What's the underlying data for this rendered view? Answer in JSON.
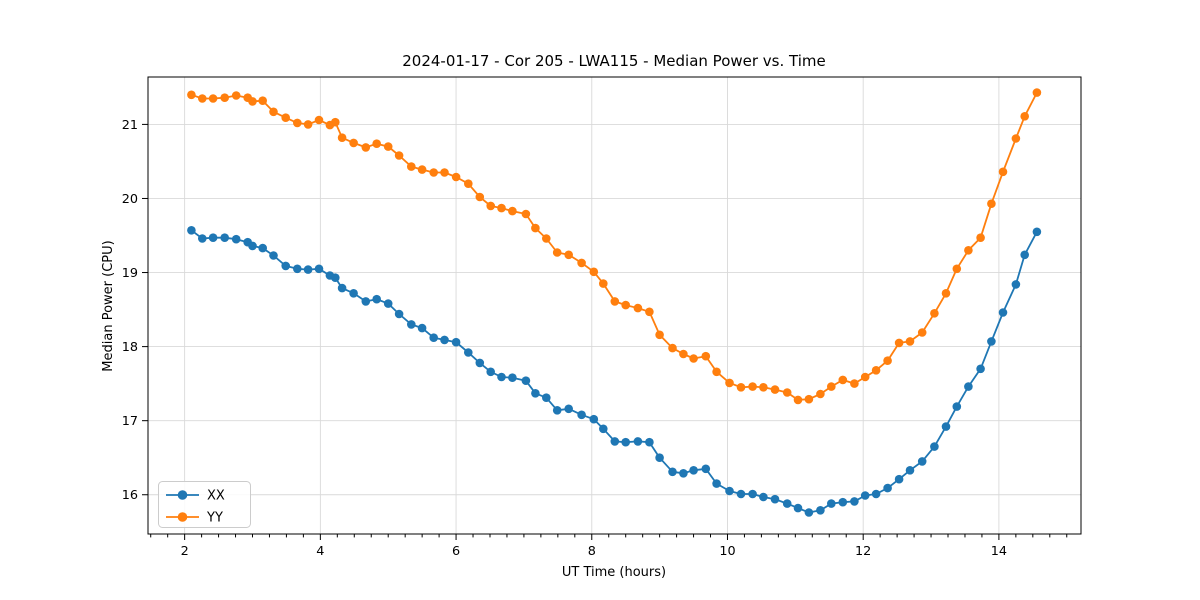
{
  "title": "2024-01-17 - Cor 205 - LWA115 - Median Power vs. Time",
  "chart_data": {
    "type": "line",
    "title": "2024-01-17 - Cor 205 - LWA115 - Median Power vs. Time",
    "xlabel": "UT Time (hours)",
    "ylabel": "Median Power (CPU)",
    "xlim": [
      1.46,
      15.21
    ],
    "ylim": [
      15.47,
      21.64
    ],
    "xticks": [
      2,
      4,
      6,
      8,
      10,
      12,
      14
    ],
    "yticks": [
      16,
      17,
      18,
      19,
      20,
      21
    ],
    "x_minor_step": 0.25,
    "grid": true,
    "legend_position": "lower left",
    "x": [
      2.1,
      2.26,
      2.42,
      2.59,
      2.76,
      2.93,
      3.0,
      3.15,
      3.31,
      3.49,
      3.66,
      3.82,
      3.98,
      4.14,
      4.22,
      4.32,
      4.49,
      4.67,
      4.83,
      5.0,
      5.16,
      5.34,
      5.5,
      5.67,
      5.83,
      6.0,
      6.18,
      6.35,
      6.51,
      6.67,
      6.83,
      7.03,
      7.17,
      7.33,
      7.49,
      7.66,
      7.85,
      8.03,
      8.17,
      8.34,
      8.5,
      8.68,
      8.85,
      9.0,
      9.19,
      9.35,
      9.5,
      9.68,
      9.84,
      10.03,
      10.2,
      10.37,
      10.53,
      10.7,
      10.88,
      11.04,
      11.2,
      11.37,
      11.53,
      11.7,
      11.87,
      12.03,
      12.19,
      12.36,
      12.53,
      12.69,
      12.87,
      13.05,
      13.22,
      13.38,
      13.55,
      13.73,
      13.89,
      14.06,
      14.25,
      14.38,
      14.56
    ],
    "series": [
      {
        "name": "XX",
        "color": "#1f77b4",
        "values": [
          19.57,
          19.46,
          19.47,
          19.47,
          19.45,
          19.41,
          19.36,
          19.33,
          19.23,
          19.09,
          19.05,
          19.04,
          19.05,
          18.96,
          18.93,
          18.79,
          18.72,
          18.61,
          18.64,
          18.58,
          18.44,
          18.3,
          18.25,
          18.12,
          18.09,
          18.06,
          17.92,
          17.78,
          17.66,
          17.59,
          17.58,
          17.54,
          17.37,
          17.31,
          17.14,
          17.16,
          17.08,
          17.02,
          16.89,
          16.72,
          16.71,
          16.72,
          16.71,
          16.5,
          16.31,
          16.29,
          16.33,
          16.35,
          16.15,
          16.05,
          16.01,
          16.01,
          15.97,
          15.94,
          15.88,
          15.82,
          15.76,
          15.79,
          15.88,
          15.9,
          15.91,
          15.99,
          16.01,
          16.09,
          16.21,
          16.33,
          16.45,
          16.65,
          16.92,
          17.19,
          17.46,
          17.7,
          18.07,
          18.46,
          18.84,
          19.24,
          19.55
        ]
      },
      {
        "name": "YY",
        "color": "#ff7f0e",
        "values": [
          21.4,
          21.35,
          21.35,
          21.36,
          21.39,
          21.36,
          21.31,
          21.32,
          21.17,
          21.09,
          21.02,
          21.0,
          21.06,
          20.99,
          21.03,
          20.82,
          20.75,
          20.69,
          20.74,
          20.7,
          20.58,
          20.43,
          20.39,
          20.35,
          20.35,
          20.29,
          20.2,
          20.02,
          19.9,
          19.87,
          19.83,
          19.79,
          19.6,
          19.46,
          19.27,
          19.24,
          19.13,
          19.01,
          18.85,
          18.61,
          18.56,
          18.52,
          18.47,
          18.16,
          17.98,
          17.9,
          17.84,
          17.87,
          17.66,
          17.51,
          17.45,
          17.46,
          17.45,
          17.42,
          17.38,
          17.28,
          17.29,
          17.36,
          17.46,
          17.55,
          17.5,
          17.59,
          17.68,
          17.81,
          18.05,
          18.07,
          18.19,
          18.45,
          18.72,
          19.05,
          19.3,
          19.47,
          19.93,
          20.36,
          20.81,
          21.11,
          21.43
        ]
      }
    ]
  }
}
